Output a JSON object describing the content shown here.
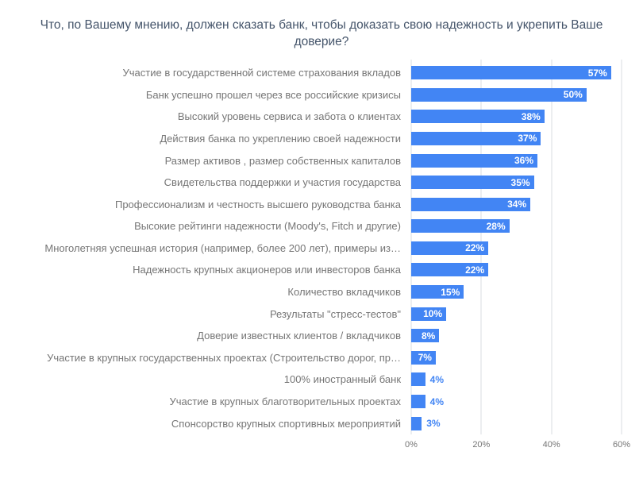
{
  "chart_data": {
    "type": "bar",
    "orientation": "horizontal",
    "title": "Что, по Вашему мнению, должен сказать банк, чтобы доказать свою надежность и укрепить Ваше доверие?",
    "categories": [
      "Участие в государственной системе страхования вкладов",
      "Банк успешно прошел через все российские кризисы",
      "Высокий уровень сервиса и забота о клиентах",
      "Действия банка по укреплению своей надежности",
      "Размер активов , размер собственных капиталов",
      "Свидетельства поддержки и участия государства",
      "Профессионализм и честность высшего руководства банка",
      "Высокие рейтинги надежности (Moody's, Fitch и другие)",
      "Многолетняя успешная история (например, более 200 лет), примеры из…",
      "Надежность крупных акционеров или инвесторов банка",
      "Количество вкладчиков",
      "Результаты \"стресс-тестов\"",
      "Доверие известных клиентов / вкладчиков",
      "Участие в крупных государственных проектах (Строительство дорог, пр…",
      "100% иностранный банк",
      "Участие в крупных благотворительных проектах",
      "Спонсорство крупных спортивных мероприятий"
    ],
    "values": [
      57,
      50,
      38,
      37,
      36,
      35,
      34,
      28,
      22,
      22,
      15,
      10,
      8,
      7,
      4,
      4,
      3
    ],
    "value_label_format": "{v}%",
    "xlim": [
      0,
      60
    ],
    "x_ticks": [
      {
        "value": 0,
        "label": "0%"
      },
      {
        "value": 20,
        "label": "20%"
      },
      {
        "value": 40,
        "label": "40%"
      },
      {
        "value": 60,
        "label": "60%"
      }
    ],
    "grid": true,
    "legend": false,
    "bar_color": "#4285f4",
    "inside_label_color": "#ffffff",
    "outside_label_color": "#4285f4",
    "grid_color": "#dadce0",
    "title_color": "#44546a",
    "category_label_color": "#757575"
  }
}
